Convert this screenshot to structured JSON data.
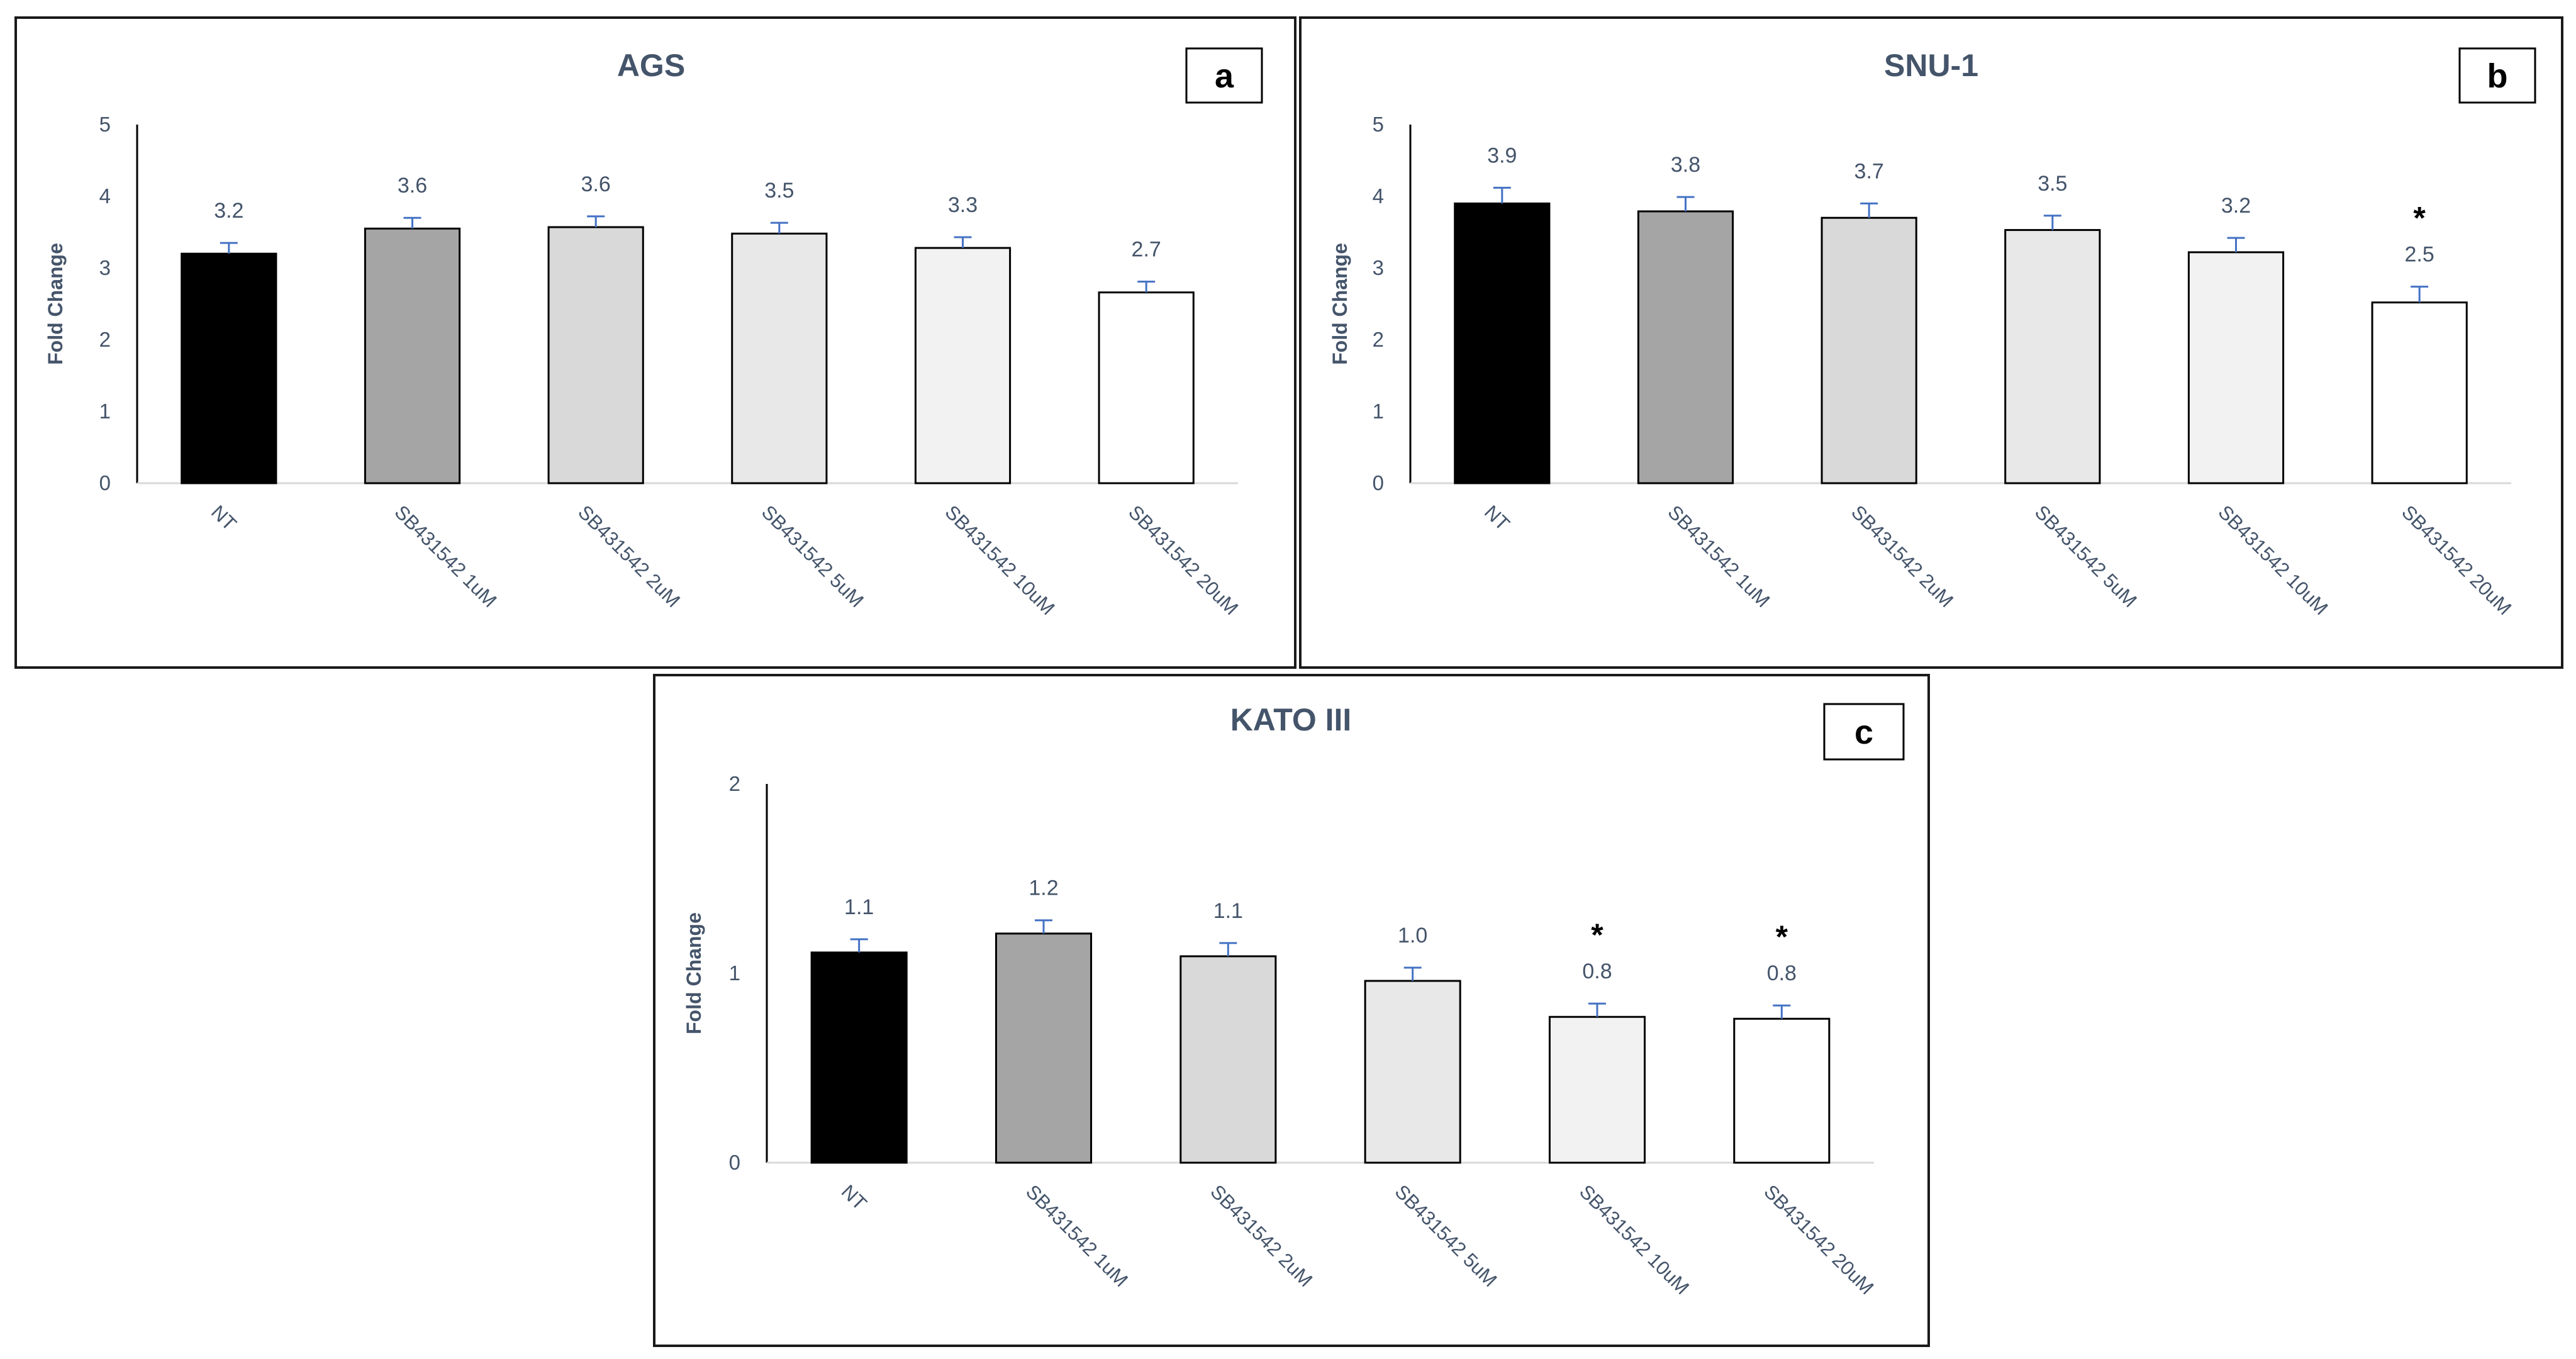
{
  "chart_data": [
    {
      "type": "bar",
      "panel_label": "a",
      "title": "AGS",
      "ylabel": "Fold Change",
      "xlabel": "",
      "ylim": [
        0,
        5
      ],
      "yticks": [
        "0",
        "1",
        "2",
        "3",
        "4",
        "5"
      ],
      "categories": [
        "NT",
        "SB431542 1uM",
        "SB431542 2uM",
        "SB431542 5uM",
        "SB431542 10uM",
        "SB431542 20uM"
      ],
      "values": [
        3.2,
        3.55,
        3.57,
        3.48,
        3.28,
        2.66
      ],
      "value_labels": [
        "3.2",
        "3.6",
        "3.6",
        "3.5",
        "3.3",
        "2.7"
      ],
      "errors": [
        0.15,
        0.15,
        0.15,
        0.15,
        0.15,
        0.15
      ],
      "significant": [
        false,
        false,
        false,
        false,
        false,
        false
      ],
      "significance_marker": "*",
      "bar_colors": [
        "#000000",
        "#a5a5a5",
        "#d9d9d9",
        "#e8e8e8",
        "#f2f2f2",
        "#ffffff"
      ],
      "error_color": "#4472c4"
    },
    {
      "type": "bar",
      "panel_label": "b",
      "title": "SNU-1",
      "ylabel": "Fold Change",
      "xlabel": "",
      "ylim": [
        0,
        5
      ],
      "yticks": [
        "0",
        "1",
        "2",
        "3",
        "4",
        "5"
      ],
      "categories": [
        "NT",
        "SB431542 1uM",
        "SB431542 2uM",
        "SB431542 5uM",
        "SB431542 10uM",
        "SB431542 20uM"
      ],
      "values": [
        3.9,
        3.79,
        3.7,
        3.53,
        3.22,
        2.52
      ],
      "value_labels": [
        "3.9",
        "3.8",
        "3.7",
        "3.5",
        "3.2",
        "2.5"
      ],
      "errors": [
        0.22,
        0.2,
        0.2,
        0.2,
        0.2,
        0.22
      ],
      "significant": [
        false,
        false,
        false,
        false,
        false,
        true
      ],
      "significance_marker": "*",
      "bar_colors": [
        "#000000",
        "#a5a5a5",
        "#d9d9d9",
        "#e8e8e8",
        "#f2f2f2",
        "#ffffff"
      ],
      "error_color": "#4472c4"
    },
    {
      "type": "bar",
      "panel_label": "c",
      "title": "KATO III",
      "ylabel": "Fold Change",
      "xlabel": "",
      "ylim": [
        0,
        2
      ],
      "yticks": [
        "0",
        "1",
        "2"
      ],
      "categories": [
        "NT",
        "SB431542 1uM",
        "SB431542 2uM",
        "SB431542 5uM",
        "SB431542 10uM",
        "SB431542 20uM"
      ],
      "values": [
        1.11,
        1.21,
        1.09,
        0.96,
        0.77,
        0.76
      ],
      "value_labels": [
        "1.1",
        "1.2",
        "1.1",
        "1.0",
        "0.8",
        "0.8"
      ],
      "errors": [
        0.07,
        0.07,
        0.07,
        0.07,
        0.07,
        0.07
      ],
      "significant": [
        false,
        false,
        false,
        false,
        true,
        true
      ],
      "significance_marker": "*",
      "bar_colors": [
        "#000000",
        "#a5a5a5",
        "#d9d9d9",
        "#e8e8e8",
        "#f2f2f2",
        "#ffffff"
      ],
      "error_color": "#4472c4"
    }
  ]
}
